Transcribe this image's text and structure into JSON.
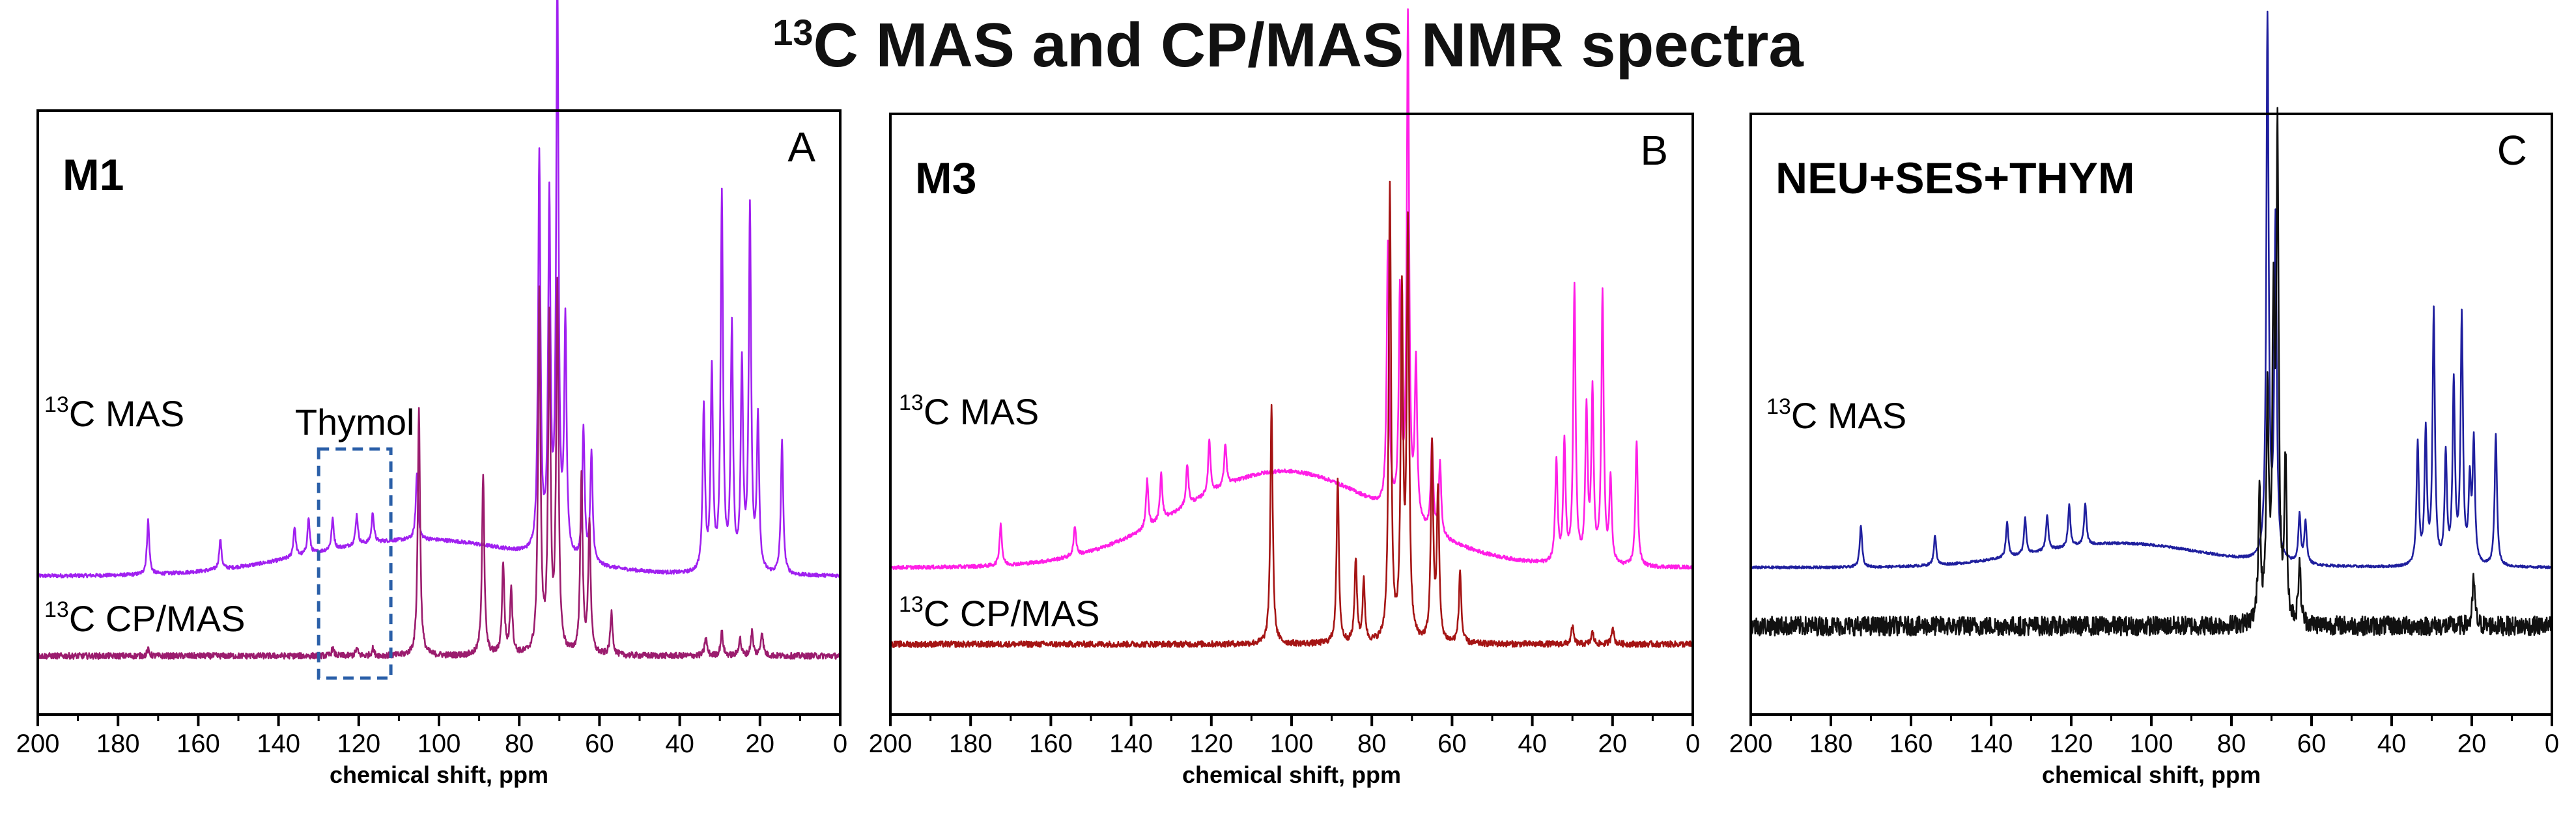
{
  "chart_data": {
    "title": {
      "sup": "13",
      "text": "C MAS and CP/MAS NMR spectra"
    },
    "panels": [
      {
        "type": "line",
        "letter": "A",
        "sample": "M1",
        "xlabel": "chemical shift, ppm",
        "xlim": [
          200,
          0
        ],
        "xticks": [
          200,
          180,
          160,
          140,
          120,
          100,
          80,
          60,
          40,
          20,
          0
        ],
        "annotation": {
          "text": "Thymol",
          "from": 130,
          "to": 112
        },
        "series": [
          {
            "name": "MAS",
            "label_sup": "13",
            "label_text": "C MAS",
            "color": "#a020f0",
            "baseline": 0.49,
            "hump": {
              "center": 105,
              "width": 38,
              "height": 0.06
            },
            "noise": 0.003,
            "peaks": [
              [
                172.5,
                0.09
              ],
              [
                154.5,
                0.05
              ],
              [
                136,
                0.05
              ],
              [
                132.5,
                0.06
              ],
              [
                126.5,
                0.05
              ],
              [
                120.5,
                0.05
              ],
              [
                116.5,
                0.05
              ],
              [
                105.5,
                0.11
              ],
              [
                75,
                0.66
              ],
              [
                72.5,
                0.58
              ],
              [
                70.5,
                0.95
              ],
              [
                68.5,
                0.38
              ],
              [
                64,
                0.22
              ],
              [
                62,
                0.18
              ],
              [
                34,
                0.27
              ],
              [
                32,
                0.33
              ],
              [
                29.5,
                0.62
              ],
              [
                27,
                0.4
              ],
              [
                24.5,
                0.34
              ],
              [
                22.5,
                0.6
              ],
              [
                20.5,
                0.25
              ],
              [
                14.5,
                0.22
              ]
            ]
          },
          {
            "name": "CP/MAS",
            "label_sup": "13",
            "label_text": "C CP/MAS",
            "color": "#9b1c6e",
            "baseline": 0.12,
            "noise": 0.005,
            "peaks": [
              [
                172.5,
                0.01
              ],
              [
                126.5,
                0.012
              ],
              [
                120.5,
                0.012
              ],
              [
                116.5,
                0.012
              ],
              [
                105,
                0.41
              ],
              [
                89,
                0.3
              ],
              [
                84,
                0.15
              ],
              [
                82,
                0.11
              ],
              [
                75,
                0.6
              ],
              [
                72.5,
                0.55
              ],
              [
                70.5,
                0.6
              ],
              [
                64.5,
                0.3
              ],
              [
                62.5,
                0.22
              ],
              [
                57,
                0.07
              ],
              [
                33.5,
                0.03
              ],
              [
                29.5,
                0.04
              ],
              [
                25,
                0.03
              ],
              [
                22,
                0.04
              ],
              [
                19.5,
                0.04
              ]
            ]
          }
        ]
      },
      {
        "type": "line",
        "letter": "B",
        "sample": "M3",
        "xlabel": "chemical shift, ppm",
        "xlim": [
          200,
          0
        ],
        "xticks": [
          200,
          180,
          160,
          140,
          120,
          100,
          80,
          60,
          40,
          20,
          0
        ],
        "series": [
          {
            "name": "MAS",
            "label_sup": "13",
            "label_text": "C MAS",
            "color": "#ff1ee6",
            "baseline": 0.3,
            "hump": {
              "center": 102,
              "width": 36,
              "height": 0.16
            },
            "noise": 0.003,
            "peaks": [
              [
                172.5,
                0.07
              ],
              [
                154,
                0.05
              ],
              [
                136,
                0.08
              ],
              [
                132.5,
                0.08
              ],
              [
                126,
                0.07
              ],
              [
                120.5,
                0.09
              ],
              [
                116.5,
                0.07
              ],
              [
                76,
                0.44
              ],
              [
                73,
                0.36
              ],
              [
                71,
                0.83
              ],
              [
                69,
                0.26
              ],
              [
                65,
                0.15
              ],
              [
                63,
                0.12
              ],
              [
                34,
                0.17
              ],
              [
                32,
                0.2
              ],
              [
                29.5,
                0.46
              ],
              [
                26.5,
                0.25
              ],
              [
                25,
                0.28
              ],
              [
                22.5,
                0.45
              ],
              [
                20.5,
                0.14
              ],
              [
                14,
                0.21
              ]
            ]
          },
          {
            "name": "CP/MAS",
            "label_sup": "13",
            "label_text": "C CP/MAS",
            "color": "#a51414",
            "baseline": 0.04,
            "noise": 0.005,
            "peaks": [
              [
                105,
                0.4
              ],
              [
                88.5,
                0.27
              ],
              [
                84,
                0.14
              ],
              [
                82,
                0.1
              ],
              [
                75.5,
                0.76
              ],
              [
                72.5,
                0.57
              ],
              [
                71,
                0.68
              ],
              [
                65,
                0.33
              ],
              [
                63.5,
                0.25
              ],
              [
                58,
                0.12
              ],
              [
                30,
                0.03
              ],
              [
                25,
                0.02
              ],
              [
                20,
                0.03
              ]
            ]
          }
        ]
      },
      {
        "type": "line",
        "letter": "C",
        "sample": "NEU+SES+THYM",
        "xlabel": "chemical shift, ppm",
        "xlim": [
          200,
          0
        ],
        "xticks": [
          200,
          180,
          160,
          140,
          120,
          100,
          80,
          60,
          40,
          20,
          0
        ],
        "series": [
          {
            "name": "MAS",
            "label_sup": "13",
            "label_text": "C MAS",
            "color": "#1f1f9e",
            "baseline": 0.29,
            "hump": {
              "center": 108,
              "width": 30,
              "height": 0.04
            },
            "noise": 0.002,
            "peaks": [
              [
                172.5,
                0.07
              ],
              [
                154,
                0.05
              ],
              [
                136,
                0.06
              ],
              [
                131.5,
                0.06
              ],
              [
                126,
                0.06
              ],
              [
                120.5,
                0.07
              ],
              [
                116.5,
                0.07
              ],
              [
                71,
                0.9
              ],
              [
                69,
                0.56
              ],
              [
                63,
                0.08
              ],
              [
                61.5,
                0.07
              ],
              [
                33.5,
                0.2
              ],
              [
                31.5,
                0.22
              ],
              [
                29.5,
                0.42
              ],
              [
                26.5,
                0.18
              ],
              [
                24.5,
                0.3
              ],
              [
                22.5,
                0.41
              ],
              [
                20.5,
                0.13
              ],
              [
                19.5,
                0.2
              ],
              [
                14,
                0.22
              ]
            ]
          },
          {
            "name": "CP/MAS",
            "label_sup": "",
            "label_text": "",
            "color": "#111111",
            "baseline": 0.07,
            "noise": 0.016,
            "peaks": [
              [
                73,
                0.22
              ],
              [
                71,
                0.36
              ],
              [
                69.5,
                0.5
              ],
              [
                68.5,
                0.78
              ],
              [
                66.5,
                0.26
              ],
              [
                63,
                0.1
              ],
              [
                19.5,
                0.08
              ]
            ]
          }
        ]
      }
    ]
  }
}
